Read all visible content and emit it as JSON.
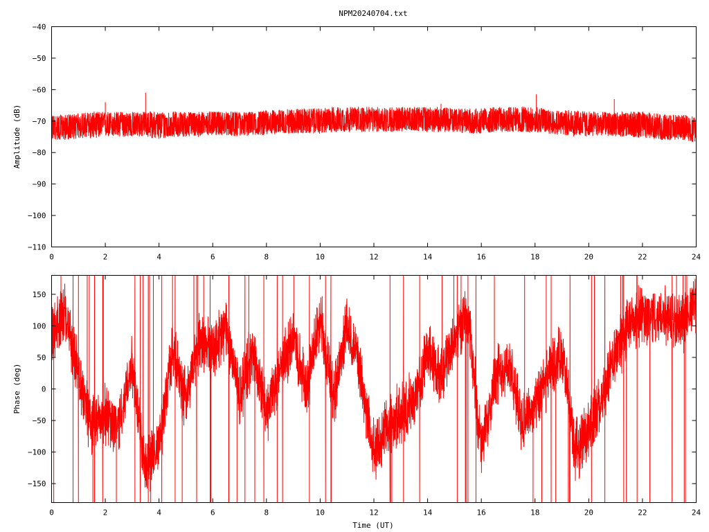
{
  "chart_data": [
    {
      "type": "line",
      "title": "NPM20240704.txt",
      "xlabel": "",
      "ylabel": "Amplitude (dB)",
      "xlim": [
        0,
        24
      ],
      "ylim": [
        -110,
        -40
      ],
      "xticks": [
        0,
        2,
        4,
        6,
        8,
        10,
        12,
        14,
        16,
        18,
        20,
        22,
        24
      ],
      "yticks": [
        -110,
        -100,
        -90,
        -80,
        -70,
        -60,
        -50,
        -40
      ],
      "grid": false,
      "color": "#ff0000",
      "series": [
        {
          "x": [
            0,
            0.5,
            1,
            1.5,
            2,
            2.5,
            3,
            3.5,
            4,
            4.5,
            5,
            5.5,
            6,
            6.5,
            7,
            7.5,
            8,
            8.5,
            9,
            9.5,
            10,
            10.5,
            11,
            11.5,
            12,
            12.5,
            13,
            13.5,
            14,
            14.5,
            15,
            15.5,
            16,
            16.5,
            17,
            17.5,
            18,
            18.5,
            19,
            19.5,
            20,
            20.5,
            21,
            21.5,
            22,
            22.5,
            23,
            23.5,
            24
          ],
          "y": [
            -72,
            -72,
            -71.5,
            -71,
            -71,
            -71,
            -71,
            -70.5,
            -71,
            -71,
            -71,
            -70.5,
            -70.5,
            -70.5,
            -71,
            -70.5,
            -70.5,
            -70,
            -70,
            -70,
            -70,
            -69.5,
            -69.5,
            -69.5,
            -69.5,
            -69.5,
            -69.5,
            -69.5,
            -69.5,
            -69.5,
            -70,
            -70,
            -70,
            -69.5,
            -69.5,
            -69.5,
            -69.5,
            -70,
            -70.5,
            -70.5,
            -71,
            -70.5,
            -70.5,
            -71,
            -71.5,
            -71.5,
            -72,
            -72,
            -72.5
          ],
          "envelope_min": [
            -76,
            -76,
            -75.5,
            -75.5,
            -75,
            -75,
            -75,
            -75,
            -76,
            -75,
            -75,
            -75,
            -74.5,
            -74.5,
            -75,
            -74.5,
            -74.5,
            -74,
            -74,
            -74,
            -74,
            -73.5,
            -73.5,
            -73.5,
            -73.5,
            -73.5,
            -73.5,
            -73,
            -73.5,
            -73.5,
            -73.5,
            -74,
            -74,
            -73.5,
            -73.5,
            -73.5,
            -73.5,
            -74,
            -74.5,
            -75,
            -75,
            -74.5,
            -75,
            -75,
            -75.5,
            -76,
            -76,
            -76,
            -77
          ],
          "envelope_max": [
            -68,
            -68,
            -67.5,
            -67,
            -67,
            -67,
            -67,
            -67,
            -67,
            -67,
            -67,
            -67,
            -67,
            -67,
            -67,
            -67,
            -66.5,
            -66.5,
            -66,
            -66,
            -66,
            -65.5,
            -65.5,
            -65.5,
            -65.5,
            -65.5,
            -65.5,
            -65.5,
            -65.5,
            -65.5,
            -66,
            -66,
            -66,
            -65.5,
            -65.5,
            -65.5,
            -65.5,
            -66,
            -66.5,
            -66.5,
            -67,
            -67,
            -67,
            -67,
            -67,
            -67.5,
            -68,
            -68,
            -68.5
          ],
          "spikes": [
            [
              2.0,
              -64
            ],
            [
              3.5,
              -61
            ],
            [
              18.05,
              -61.5
            ],
            [
              20.95,
              -63
            ],
            [
              14.5,
              -64.5
            ]
          ]
        }
      ]
    },
    {
      "type": "line",
      "title": "",
      "xlabel": "Time (UT)",
      "ylabel": "Phase (deg)",
      "xlim": [
        0,
        24
      ],
      "ylim": [
        -180,
        180
      ],
      "xticks": [
        0,
        2,
        4,
        6,
        8,
        10,
        12,
        14,
        16,
        18,
        20,
        22,
        24
      ],
      "yticks": [
        -150,
        -100,
        -50,
        0,
        50,
        100,
        150
      ],
      "grid": false,
      "color": "#ff0000",
      "series": [
        {
          "x": [
            0,
            0.5,
            1,
            1.5,
            2,
            2.5,
            3,
            3.5,
            4,
            4.5,
            5,
            5.5,
            6,
            6.5,
            7,
            7.5,
            8,
            8.5,
            9,
            9.5,
            10,
            10.5,
            11,
            11.5,
            12,
            12.5,
            13,
            13.5,
            14,
            14.5,
            15,
            15.5,
            16,
            16.5,
            17,
            17.5,
            18,
            18.5,
            19,
            19.5,
            20,
            20.5,
            21,
            21.5,
            22,
            22.5,
            23,
            23.5,
            24
          ],
          "y": [
            90,
            120,
            20,
            -60,
            -40,
            -60,
            40,
            -130,
            -90,
            60,
            -20,
            80,
            60,
            100,
            -10,
            60,
            -40,
            30,
            80,
            0,
            120,
            -20,
            110,
            20,
            -100,
            -60,
            -40,
            -20,
            60,
            20,
            80,
            120,
            -100,
            20,
            40,
            -50,
            -30,
            20,
            60,
            -100,
            -60,
            -20,
            60,
            100,
            120,
            110,
            120,
            100,
            140
          ],
          "wraps": [
            0.8,
            1.0,
            1.6,
            1.9,
            3.1,
            3.3,
            3.6,
            4.1,
            4.6,
            5.4,
            5.9,
            6.6,
            7.2,
            7.9,
            8.4,
            8.6,
            9.6,
            10.2,
            10.4,
            12.6,
            13.1,
            13.7,
            15.1,
            15.5,
            15.8,
            18.6,
            19.3,
            20.1,
            20.6,
            21.3,
            21.8,
            23.1,
            23.6
          ]
        }
      ]
    }
  ]
}
